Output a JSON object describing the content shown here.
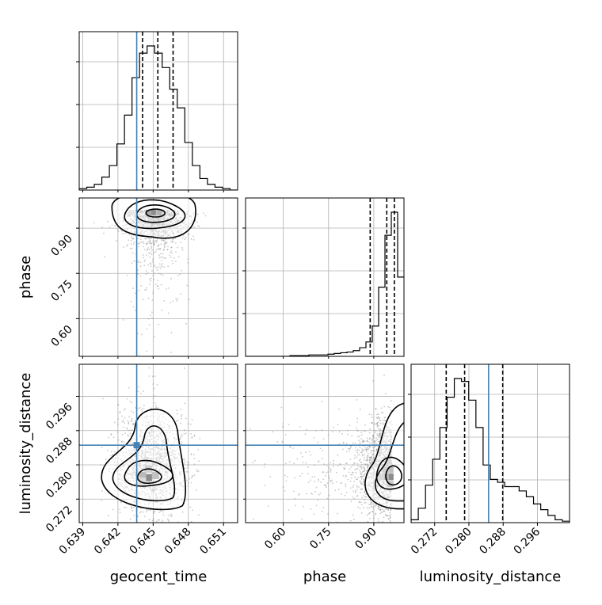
{
  "chart_data": {
    "type": "corner",
    "parameters": [
      "geocent_time",
      "phase",
      "luminosity_distance"
    ],
    "truths": {
      "geocent_time": 0.6436,
      "phase": null,
      "luminosity_distance": 0.2846
    },
    "quantiles": {
      "geocent_time": [
        0.6441,
        0.6454,
        0.6467
      ],
      "phase": [
        0.888,
        0.943,
        0.968
      ],
      "luminosity_distance": [
        0.2747,
        0.279,
        0.2879
      ]
    },
    "ticks": {
      "geocent_time": [
        "0.639",
        "0.642",
        "0.645",
        "0.648",
        "0.651"
      ],
      "phase": [
        "0.60",
        "0.75",
        "0.90"
      ],
      "luminosity_distance": [
        "0.272",
        "0.280",
        "0.288",
        "0.296"
      ]
    },
    "tick_values": {
      "geocent_time": [
        0.639,
        0.642,
        0.645,
        0.648,
        0.651
      ],
      "phase": [
        0.6,
        0.75,
        0.9
      ],
      "luminosity_distance": [
        0.272,
        0.28,
        0.288,
        0.296
      ]
    },
    "ranges": {
      "geocent_time": [
        0.6387,
        0.6522
      ],
      "phase": [
        0.475,
        1.0
      ],
      "luminosity_distance": [
        0.2665,
        0.3035
      ]
    },
    "histograms": {
      "geocent_time": [
        1,
        2,
        4,
        9,
        17,
        32,
        52,
        78,
        95,
        100,
        95,
        85,
        70,
        57,
        33,
        17,
        8,
        4,
        2,
        1,
        0
      ],
      "phase": [
        0,
        0,
        0,
        0,
        0,
        0,
        0,
        0.5,
        0.5,
        0.5,
        1,
        1,
        1,
        1.5,
        2,
        2.5,
        3,
        4,
        6,
        10,
        21,
        48,
        84,
        100,
        55
      ],
      "luminosity_distance": [
        2,
        10,
        26,
        44,
        66,
        87,
        100,
        98,
        85,
        66,
        40,
        30,
        28,
        25,
        25,
        22,
        18,
        13,
        9,
        5,
        2,
        1
      ]
    },
    "grid": true
  }
}
